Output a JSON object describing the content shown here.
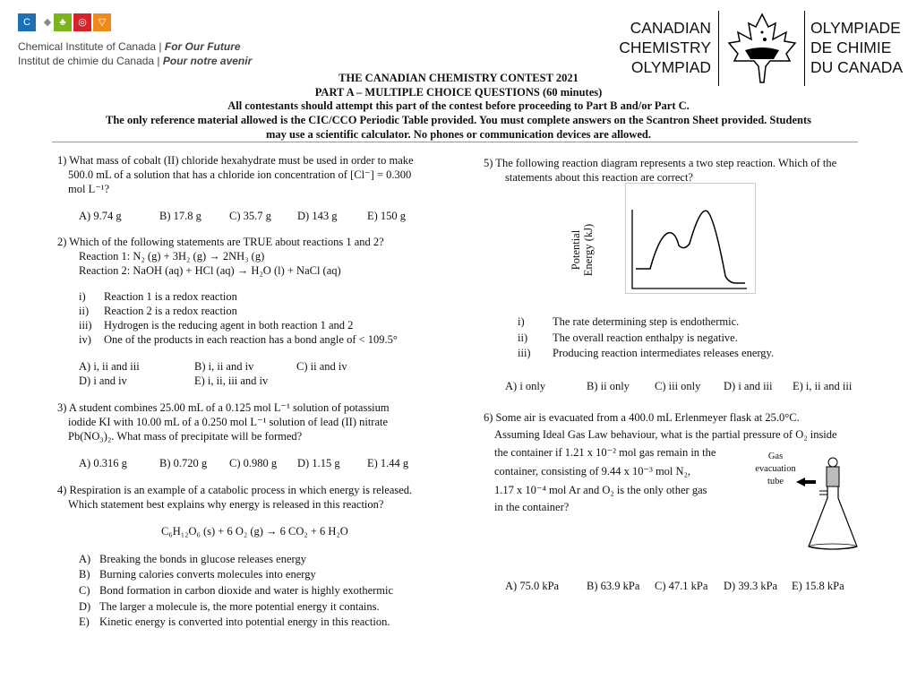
{
  "header": {
    "cic_line1": "Chemical Institute of Canada | ",
    "cic_line1_em": "For Our Future",
    "cic_line2": "Institut de chimie du Canada | ",
    "cic_line2_em": "Pour notre avenir",
    "olympiad_en": [
      "CANADIAN",
      "CHEMISTRY",
      "OLYMPIAD"
    ],
    "olympiad_fr": [
      "OLYMPIADE",
      "DE CHIMIE",
      "DU CANADA"
    ],
    "title": "THE CANADIAN CHEMISTRY CONTEST 2021",
    "subtitle": "PART A – MULTIPLE CHOICE QUESTIONS (60 minutes)",
    "instruction1": "All contestants should attempt this part of the contest before proceeding to Part B and/or Part C.",
    "instruction2": "The only reference material allowed is the CIC/CCO Periodic Table provided. You must complete answers on the Scantron Sheet provided. Students",
    "instruction3": "may use a scientific calculator. No phones or communication devices are allowed.",
    "logo_colors": [
      "#1f6fb5",
      "#7ab51d",
      "#d6232a",
      "#f08a1c"
    ]
  },
  "q1": {
    "lines": [
      "1) What mass of cobalt (II) chloride hexahydrate must be used in order to make",
      "500.0 mL of a solution that has a chloride ion concentration of [Cl⁻] = 0.300",
      "mol L⁻¹?"
    ],
    "answers": [
      "A)  9.74  g",
      "B) 17.8 g",
      "C) 35.7 g",
      "D) 143  g",
      "E) 150 g"
    ]
  },
  "q2": {
    "lines": [
      "2) Which of the following statements are TRUE about reactions 1 and 2?",
      "Reaction 1: N₂ (g) + 3H₂ (g) → 2NH₃ (g)",
      "Reaction 2: NaOH (aq) + HCl (aq) → H₂O (l) + NaCl (aq)"
    ],
    "items": [
      [
        "i)",
        "Reaction 1 is a redox reaction"
      ],
      [
        "ii)",
        "Reaction 2 is a redox reaction"
      ],
      [
        "iii)",
        "Hydrogen is the reducing agent in both reaction 1 and 2"
      ],
      [
        "iv)",
        "One of the products in each reaction has a bond angle of < 109.5°"
      ]
    ],
    "answers": [
      "A)  i, ii and iii",
      "B) i, ii and iv",
      "C) ii and iv",
      "D)  i and iv",
      "E) i, ii, iii and iv"
    ]
  },
  "q3": {
    "lines": [
      "3) A student combines 25.00 mL of a 0.125 mol L⁻¹ solution of potassium",
      "iodide KI with 10.00 mL of a 0.250 mol L⁻¹ solution of lead (II) nitrate",
      "Pb(NO₃)₂. What mass of precipitate will be formed?"
    ],
    "answers": [
      "A)  0.316 g",
      "B) 0.720 g",
      "C) 0.980 g",
      "D) 1.15 g",
      "E) 1.44 g"
    ]
  },
  "q4": {
    "lines": [
      "4) Respiration is an example of a catabolic process in which energy is released.",
      "Which statement best explains why energy is released in this reaction?"
    ],
    "equation": "C₆H₁₂O₆ (s) + 6 O₂ (g) → 6 CO₂ + 6 H₂O",
    "options": [
      [
        "A)",
        "Breaking the bonds in glucose releases energy"
      ],
      [
        "B)",
        "Burning calories converts molecules into energy"
      ],
      [
        "C)",
        "Bond formation in carbon dioxide and water is highly exothermic"
      ],
      [
        "D)",
        "The larger a molecule is, the more potential energy it contains."
      ],
      [
        "E)",
        "Kinetic energy is converted into potential energy in this reaction."
      ]
    ]
  },
  "q5": {
    "lines": [
      "5) The following reaction diagram represents a two step reaction. Which of the",
      "statements about this reaction are correct?"
    ],
    "ylabel1": "Potential",
    "ylabel2": "Energy (kJ)",
    "items": [
      [
        "i)",
        "The rate determining step is endothermic."
      ],
      [
        "ii)",
        "The overall reaction enthalpy is negative."
      ],
      [
        "iii)",
        "Producing reaction intermediates releases energy."
      ]
    ],
    "answers": [
      "A)  i only",
      "B) ii only",
      "C) iii only",
      "D) i and iii",
      "E) i, ii and iii"
    ]
  },
  "q6": {
    "lines": [
      "6) Some air is evacuated from a 400.0 mL Erlenmeyer flask at 25.0°C.",
      "Assuming Ideal Gas Law behaviour, what is the partial pressure of O₂ inside",
      "the container if 1.21 x 10⁻² mol gas remain in the",
      "container, consisting of 9.44 x 10⁻³ mol N₂,",
      "1.17 x 10⁻⁴ mol Ar and O₂ is the only other gas",
      "in the container?"
    ],
    "flask_label": [
      "Gas",
      "evacuation",
      "tube"
    ],
    "answers": [
      "A)  75.0 kPa",
      "B) 63.9 kPa",
      "C) 47.1 kPa",
      "D) 39.3 kPa",
      "E) 15.8 kPa"
    ]
  }
}
